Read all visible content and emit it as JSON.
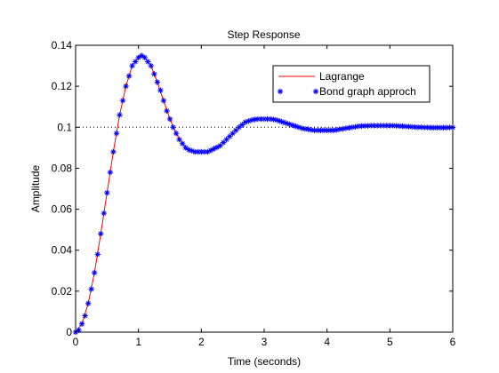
{
  "chart_data": {
    "type": "line",
    "title": "Step Response",
    "xlabel": "Time (seconds)",
    "ylabel": "Amplitude",
    "xlim": [
      0,
      6
    ],
    "ylim": [
      0,
      0.14
    ],
    "xticks": [
      0,
      1,
      2,
      3,
      4,
      5,
      6
    ],
    "yticks": [
      0,
      0.02,
      0.04,
      0.06,
      0.08,
      0.1,
      0.12,
      0.14
    ],
    "ytick_labels": [
      "0",
      "0.02",
      "0.04",
      "0.06",
      "0.08",
      "0.1",
      "0.12",
      "0.14"
    ],
    "xtick_labels": [
      "0",
      "1",
      "2",
      "3",
      "4",
      "5",
      "6"
    ],
    "grid": false,
    "legend_position": "top-right",
    "reference_line": {
      "y": 0.1,
      "style": "dotted",
      "color": "#000000"
    },
    "series": [
      {
        "name": "Lagrange",
        "style": "line",
        "color": "#ff0000",
        "x": [
          0,
          0.1,
          0.2,
          0.3,
          0.4,
          0.5,
          0.6,
          0.7,
          0.8,
          0.9,
          1.0,
          1.05,
          1.1,
          1.2,
          1.3,
          1.4,
          1.5,
          1.6,
          1.7,
          1.8,
          1.9,
          2.0,
          2.1,
          2.2,
          2.3,
          2.4,
          2.5,
          2.6,
          2.7,
          2.8,
          2.9,
          3.0,
          3.1,
          3.2,
          3.3,
          3.4,
          3.5,
          3.6,
          3.7,
          3.8,
          3.9,
          4.0,
          4.1,
          4.2,
          4.3,
          4.4,
          4.5,
          4.6,
          4.7,
          4.8,
          4.9,
          5.0,
          5.1,
          5.2,
          5.3,
          5.4,
          5.5,
          5.6,
          5.7,
          5.8,
          5.9,
          6.0
        ],
        "y": [
          0,
          0.004,
          0.014,
          0.029,
          0.048,
          0.068,
          0.088,
          0.106,
          0.12,
          0.13,
          0.134,
          0.135,
          0.134,
          0.13,
          0.122,
          0.113,
          0.104,
          0.097,
          0.092,
          0.089,
          0.088,
          0.088,
          0.088,
          0.0895,
          0.091,
          0.094,
          0.097,
          0.1,
          0.1025,
          0.1035,
          0.104,
          0.104,
          0.104,
          0.1035,
          0.1025,
          0.1015,
          0.1005,
          0.0995,
          0.099,
          0.0985,
          0.0985,
          0.0985,
          0.0985,
          0.099,
          0.0995,
          0.1,
          0.1005,
          0.1007,
          0.1008,
          0.1008,
          0.1008,
          0.1008,
          0.1007,
          0.1005,
          0.1003,
          0.1001,
          0.1,
          0.0999,
          0.0998,
          0.0998,
          0.0998,
          0.0999
        ]
      },
      {
        "name": "Bond graph approch",
        "style": "markers",
        "marker": "asterisk",
        "color": "#0000ff",
        "x": [
          0,
          0.05,
          0.1,
          0.15,
          0.2,
          0.25,
          0.3,
          0.35,
          0.4,
          0.45,
          0.5,
          0.55,
          0.6,
          0.65,
          0.7,
          0.75,
          0.8,
          0.85,
          0.9,
          0.95,
          1.0,
          1.05,
          1.1,
          1.15,
          1.2,
          1.25,
          1.3,
          1.35,
          1.4,
          1.45,
          1.5,
          1.55,
          1.6,
          1.65,
          1.7,
          1.75,
          1.8,
          1.85,
          1.9,
          1.95,
          2.0,
          2.05,
          2.1,
          2.15,
          2.2,
          2.25,
          2.3,
          2.35,
          2.4,
          2.45,
          2.5,
          2.55,
          2.6,
          2.65,
          2.7,
          2.75,
          2.8,
          2.85,
          2.9,
          2.95,
          3.0,
          3.05,
          3.1,
          3.15,
          3.2,
          3.25,
          3.3,
          3.35,
          3.4,
          3.45,
          3.5,
          3.55,
          3.6,
          3.65,
          3.7,
          3.75,
          3.8,
          3.85,
          3.9,
          3.95,
          4.0,
          4.05,
          4.1,
          4.15,
          4.2,
          4.25,
          4.3,
          4.35,
          4.4,
          4.45,
          4.5,
          4.55,
          4.6,
          4.65,
          4.7,
          4.75,
          4.8,
          4.85,
          4.9,
          4.95,
          5.0,
          5.05,
          5.1,
          5.15,
          5.2,
          5.25,
          5.3,
          5.35,
          5.4,
          5.45,
          5.5,
          5.55,
          5.6,
          5.65,
          5.7,
          5.75,
          5.8,
          5.85,
          5.9,
          5.95,
          6.0
        ],
        "y": [
          0,
          0.001,
          0.004,
          0.008,
          0.014,
          0.021,
          0.029,
          0.038,
          0.048,
          0.058,
          0.068,
          0.078,
          0.088,
          0.097,
          0.106,
          0.113,
          0.12,
          0.125,
          0.13,
          0.132,
          0.134,
          0.135,
          0.134,
          0.132,
          0.13,
          0.126,
          0.122,
          0.118,
          0.113,
          0.108,
          0.104,
          0.1,
          0.097,
          0.094,
          0.092,
          0.09,
          0.089,
          0.0885,
          0.088,
          0.088,
          0.088,
          0.088,
          0.088,
          0.0887,
          0.0895,
          0.0902,
          0.091,
          0.0925,
          0.094,
          0.0955,
          0.097,
          0.0985,
          0.1,
          0.1012,
          0.1025,
          0.103,
          0.1035,
          0.1038,
          0.104,
          0.104,
          0.104,
          0.104,
          0.104,
          0.1038,
          0.1035,
          0.103,
          0.1025,
          0.102,
          0.1015,
          0.101,
          0.1005,
          0.1,
          0.0995,
          0.0992,
          0.099,
          0.0987,
          0.0985,
          0.0985,
          0.0985,
          0.0985,
          0.0985,
          0.0985,
          0.0985,
          0.0987,
          0.099,
          0.0992,
          0.0995,
          0.0997,
          0.1,
          0.1002,
          0.1005,
          0.1006,
          0.1007,
          0.1007,
          0.1008,
          0.1008,
          0.1008,
          0.1008,
          0.1008,
          0.1008,
          0.1008,
          0.1008,
          0.1007,
          0.1006,
          0.1005,
          0.1004,
          0.1003,
          0.1002,
          0.1001,
          0.1,
          0.1,
          0.0999,
          0.0999,
          0.0998,
          0.0998,
          0.0998,
          0.0998,
          0.0998,
          0.0998,
          0.0999,
          0.0999
        ]
      }
    ]
  }
}
